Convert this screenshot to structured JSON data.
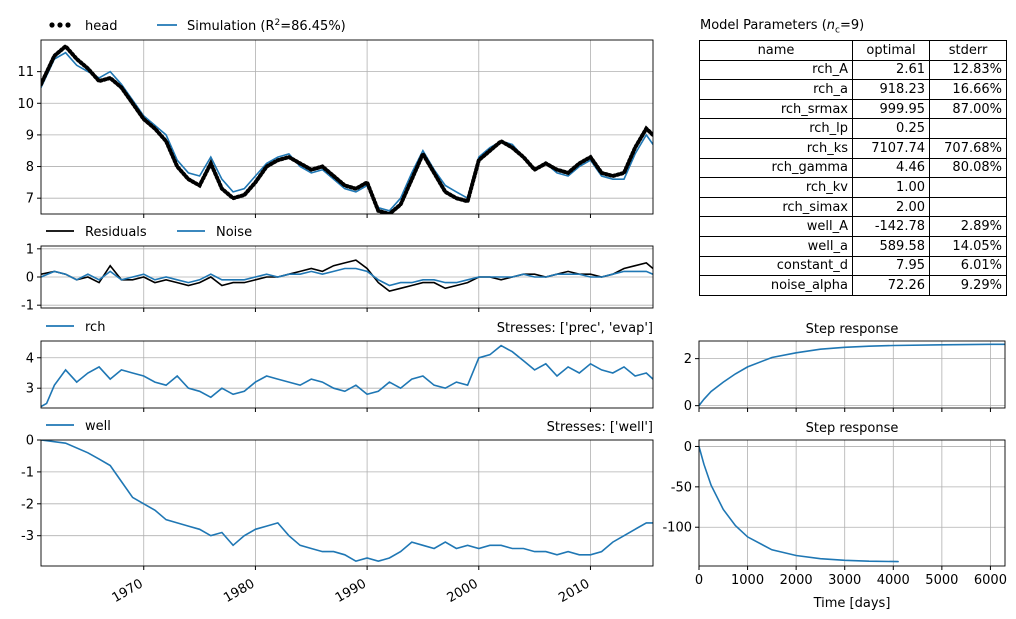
{
  "colors": {
    "sim": "#1f77b4",
    "obs": "#000000",
    "grid": "#b0b0b0"
  },
  "params": {
    "title": "Model Parameters (",
    "title_sub_symbol": "n",
    "title_sub": "c",
    "title_end": "=9)",
    "headers": [
      "name",
      "optimal",
      "stderr"
    ],
    "rows": [
      {
        "name": "rch_A",
        "optimal": "2.61",
        "stderr": "12.83%"
      },
      {
        "name": "rch_a",
        "optimal": "918.23",
        "stderr": "16.66%"
      },
      {
        "name": "rch_srmax",
        "optimal": "999.95",
        "stderr": "87.00%"
      },
      {
        "name": "rch_lp",
        "optimal": "0.25",
        "stderr": ""
      },
      {
        "name": "rch_ks",
        "optimal": "7107.74",
        "stderr": "707.68%"
      },
      {
        "name": "rch_gamma",
        "optimal": "4.46",
        "stderr": "80.08%"
      },
      {
        "name": "rch_kv",
        "optimal": "1.00",
        "stderr": ""
      },
      {
        "name": "rch_simax",
        "optimal": "2.00",
        "stderr": ""
      },
      {
        "name": "well_A",
        "optimal": "-142.78",
        "stderr": "2.89%"
      },
      {
        "name": "well_a",
        "optimal": "589.58",
        "stderr": "14.05%"
      },
      {
        "name": "constant_d",
        "optimal": "7.95",
        "stderr": "6.01%"
      },
      {
        "name": "noise_alpha",
        "optimal": "72.26",
        "stderr": "9.29%"
      }
    ]
  },
  "chart_data": [
    {
      "id": "head",
      "type": "line",
      "legend": [
        "head",
        "Simulation (R",
        "2",
        "=86.45%)"
      ],
      "x": [
        1960.8,
        1962,
        1963,
        1964,
        1965,
        1966,
        1967,
        1968,
        1969,
        1970,
        1971,
        1972,
        1973,
        1974,
        1975,
        1976,
        1977,
        1978,
        1979,
        1980,
        1981,
        1982,
        1983,
        1984,
        1985,
        1986,
        1987,
        1988,
        1989,
        1990,
        1991,
        1992,
        1993,
        1994,
        1995,
        1996,
        1997,
        1998,
        1999,
        2000,
        2001,
        2002,
        2003,
        2004,
        2005,
        2006,
        2007,
        2008,
        2009,
        2010,
        2011,
        2012,
        2013,
        2014,
        2015,
        2015.6
      ],
      "series": [
        {
          "name": "Simulation",
          "values": [
            10.5,
            11.4,
            11.6,
            11.2,
            11.0,
            10.8,
            11.0,
            10.6,
            10.1,
            9.6,
            9.3,
            9.0,
            8.2,
            7.8,
            7.7,
            8.3,
            7.6,
            7.2,
            7.3,
            7.7,
            8.1,
            8.3,
            8.4,
            8.0,
            7.8,
            7.9,
            7.6,
            7.3,
            7.2,
            7.4,
            6.7,
            6.6,
            7.0,
            7.8,
            8.5,
            7.9,
            7.4,
            7.2,
            7.0,
            8.3,
            8.6,
            8.8,
            8.7,
            8.3,
            7.9,
            8.1,
            7.8,
            7.7,
            8.0,
            8.2,
            7.7,
            7.6,
            7.6,
            8.4,
            9.0,
            8.7
          ]
        },
        {
          "name": "head",
          "values": [
            10.6,
            11.5,
            11.8,
            11.4,
            11.1,
            10.7,
            10.8,
            10.5,
            10.0,
            9.5,
            9.2,
            8.8,
            8.0,
            7.6,
            7.4,
            8.1,
            7.3,
            7.0,
            7.1,
            7.5,
            8.0,
            8.2,
            8.3,
            8.1,
            7.9,
            8.0,
            7.7,
            7.4,
            7.3,
            7.5,
            6.6,
            6.5,
            6.8,
            7.6,
            8.4,
            7.8,
            7.2,
            7.0,
            6.9,
            8.2,
            8.5,
            8.8,
            8.6,
            8.3,
            7.9,
            8.1,
            7.9,
            7.8,
            8.1,
            8.3,
            7.8,
            7.7,
            7.8,
            8.6,
            9.2,
            9.0
          ]
        }
      ],
      "ylim": [
        6.5,
        12.0
      ],
      "xlim": [
        1960.8,
        2015.6
      ],
      "yticks": [
        "7",
        "8",
        "9",
        "10",
        "11"
      ],
      "grid": true
    },
    {
      "id": "residuals",
      "type": "line",
      "legend": [
        "Residuals",
        "Noise"
      ],
      "x": [
        1960.8,
        1962,
        1963,
        1964,
        1965,
        1966,
        1967,
        1968,
        1969,
        1970,
        1971,
        1972,
        1973,
        1974,
        1975,
        1976,
        1977,
        1978,
        1979,
        1980,
        1981,
        1982,
        1983,
        1984,
        1985,
        1986,
        1987,
        1988,
        1989,
        1990,
        1991,
        1992,
        1993,
        1994,
        1995,
        1996,
        1997,
        1998,
        1999,
        2000,
        2001,
        2002,
        2003,
        2004,
        2005,
        2006,
        2007,
        2008,
        2009,
        2010,
        2011,
        2012,
        2013,
        2014,
        2015,
        2015.6
      ],
      "series": [
        {
          "name": "Residuals",
          "values": [
            0.1,
            0.2,
            0.1,
            -0.1,
            0.0,
            -0.2,
            0.4,
            -0.1,
            -0.1,
            0.0,
            -0.2,
            -0.1,
            -0.2,
            -0.3,
            -0.2,
            0.0,
            -0.3,
            -0.2,
            -0.2,
            -0.1,
            0.0,
            0.0,
            0.1,
            0.2,
            0.3,
            0.2,
            0.4,
            0.5,
            0.6,
            0.3,
            -0.2,
            -0.5,
            -0.4,
            -0.3,
            -0.2,
            -0.2,
            -0.4,
            -0.3,
            -0.2,
            0.0,
            0.0,
            -0.1,
            0.0,
            0.1,
            0.1,
            0.0,
            0.1,
            0.2,
            0.1,
            0.1,
            0.0,
            0.1,
            0.3,
            0.4,
            0.5,
            0.3
          ]
        },
        {
          "name": "Noise",
          "values": [
            0.0,
            0.2,
            0.1,
            -0.1,
            0.1,
            -0.1,
            0.2,
            -0.1,
            0.0,
            0.1,
            -0.1,
            0.0,
            -0.1,
            -0.2,
            -0.1,
            0.1,
            -0.1,
            -0.1,
            -0.1,
            0.0,
            0.1,
            0.0,
            0.1,
            0.1,
            0.2,
            0.1,
            0.2,
            0.3,
            0.3,
            0.2,
            -0.1,
            -0.3,
            -0.2,
            -0.2,
            -0.1,
            -0.1,
            -0.2,
            -0.2,
            -0.1,
            0.0,
            0.0,
            0.0,
            0.0,
            0.1,
            0.0,
            0.0,
            0.1,
            0.1,
            0.1,
            0.0,
            0.0,
            0.1,
            0.2,
            0.2,
            0.2,
            0.1
          ]
        }
      ],
      "ylim": [
        -1.1,
        1.1
      ],
      "xlim": [
        1960.8,
        2015.6
      ],
      "yticks": [
        "-1",
        "0",
        "1"
      ],
      "grid": true
    },
    {
      "id": "rch",
      "type": "line",
      "legend": [
        "rch"
      ],
      "stresses": "Stresses: ['prec', 'evap']",
      "x": [
        1960.8,
        1961.3,
        1962,
        1963,
        1964,
        1965,
        1966,
        1967,
        1968,
        1969,
        1970,
        1971,
        1972,
        1973,
        1974,
        1975,
        1976,
        1977,
        1978,
        1979,
        1980,
        1981,
        1982,
        1983,
        1984,
        1985,
        1986,
        1987,
        1988,
        1989,
        1990,
        1991,
        1992,
        1993,
        1994,
        1995,
        1996,
        1997,
        1998,
        1999,
        2000,
        2001,
        2002,
        2003,
        2004,
        2005,
        2006,
        2007,
        2008,
        2009,
        2010,
        2011,
        2012,
        2013,
        2014,
        2015,
        2015.6
      ],
      "series": [
        {
          "name": "rch",
          "values": [
            2.4,
            2.5,
            3.1,
            3.6,
            3.2,
            3.5,
            3.7,
            3.3,
            3.6,
            3.5,
            3.4,
            3.2,
            3.1,
            3.4,
            3.0,
            2.9,
            2.7,
            3.0,
            2.8,
            2.9,
            3.2,
            3.4,
            3.3,
            3.2,
            3.1,
            3.3,
            3.2,
            3.0,
            2.9,
            3.1,
            2.8,
            2.9,
            3.2,
            3.0,
            3.3,
            3.4,
            3.1,
            3.0,
            3.2,
            3.1,
            4.0,
            4.1,
            4.4,
            4.2,
            3.9,
            3.6,
            3.8,
            3.4,
            3.7,
            3.5,
            3.8,
            3.6,
            3.5,
            3.7,
            3.4,
            3.5,
            3.3
          ]
        }
      ],
      "ylim": [
        2.35,
        4.55
      ],
      "xlim": [
        1960.8,
        2015.6
      ],
      "yticks": [
        "3",
        "4"
      ],
      "grid": true
    },
    {
      "id": "well",
      "type": "line",
      "legend": [
        "well"
      ],
      "stresses": "Stresses: ['well']",
      "x": [
        1960.8,
        1963,
        1965,
        1966,
        1967,
        1968,
        1969,
        1970,
        1971,
        1972,
        1973,
        1974,
        1975,
        1976,
        1977,
        1978,
        1979,
        1980,
        1981,
        1982,
        1983,
        1984,
        1985,
        1986,
        1987,
        1988,
        1989,
        1990,
        1991,
        1992,
        1993,
        1994,
        1995,
        1996,
        1997,
        1998,
        1999,
        2000,
        2001,
        2002,
        2003,
        2004,
        2005,
        2006,
        2007,
        2008,
        2009,
        2010,
        2011,
        2012,
        2013,
        2014,
        2015,
        2015.6
      ],
      "series": [
        {
          "name": "well",
          "values": [
            0.0,
            -0.1,
            -0.4,
            -0.6,
            -0.8,
            -1.3,
            -1.8,
            -2.0,
            -2.2,
            -2.5,
            -2.6,
            -2.7,
            -2.8,
            -3.0,
            -2.9,
            -3.3,
            -3.0,
            -2.8,
            -2.7,
            -2.6,
            -3.0,
            -3.3,
            -3.4,
            -3.5,
            -3.5,
            -3.6,
            -3.8,
            -3.7,
            -3.8,
            -3.7,
            -3.5,
            -3.2,
            -3.3,
            -3.4,
            -3.2,
            -3.4,
            -3.3,
            -3.4,
            -3.3,
            -3.3,
            -3.4,
            -3.4,
            -3.5,
            -3.5,
            -3.6,
            -3.5,
            -3.6,
            -3.6,
            -3.5,
            -3.2,
            -3.0,
            -2.8,
            -2.6,
            -2.6
          ]
        }
      ],
      "ylim": [
        -3.95,
        0.0
      ],
      "xlim": [
        1960.8,
        2015.6
      ],
      "yticks": [
        "0",
        "-1",
        "-2",
        "-3"
      ],
      "xticks": [
        "1970",
        "1980",
        "1990",
        "2000",
        "2010"
      ],
      "grid": true
    },
    {
      "id": "step_rch",
      "type": "line",
      "title": "Step response",
      "x": [
        0,
        100,
        250,
        500,
        750,
        1000,
        1500,
        2000,
        2500,
        3000,
        3500,
        4000,
        5000,
        6000,
        6300
      ],
      "series": [
        {
          "name": "step",
          "values": [
            0,
            0.27,
            0.6,
            1.0,
            1.35,
            1.65,
            2.05,
            2.25,
            2.4,
            2.48,
            2.53,
            2.56,
            2.59,
            2.61,
            2.61
          ]
        }
      ],
      "ylim": [
        -0.1,
        2.75
      ],
      "xlim": [
        0,
        6300
      ],
      "yticks": [
        "0",
        "2"
      ],
      "grid": true
    },
    {
      "id": "step_well",
      "type": "line",
      "title": "Step response",
      "x": [
        0,
        100,
        250,
        500,
        750,
        1000,
        1500,
        2000,
        2500,
        3000,
        3500,
        4100
      ],
      "series": [
        {
          "name": "step",
          "values": [
            0,
            -22,
            -48,
            -78,
            -98,
            -112,
            -128,
            -135,
            -139,
            -141,
            -142,
            -142.5
          ]
        }
      ],
      "ylim": [
        -148,
        8
      ],
      "xlim": [
        0,
        6300
      ],
      "yticks": [
        "0",
        "-50",
        "-100"
      ],
      "xticks": [
        "0",
        "1000",
        "2000",
        "3000",
        "4000",
        "5000",
        "6000"
      ],
      "xlabel": "Time [days]",
      "grid": true
    }
  ]
}
